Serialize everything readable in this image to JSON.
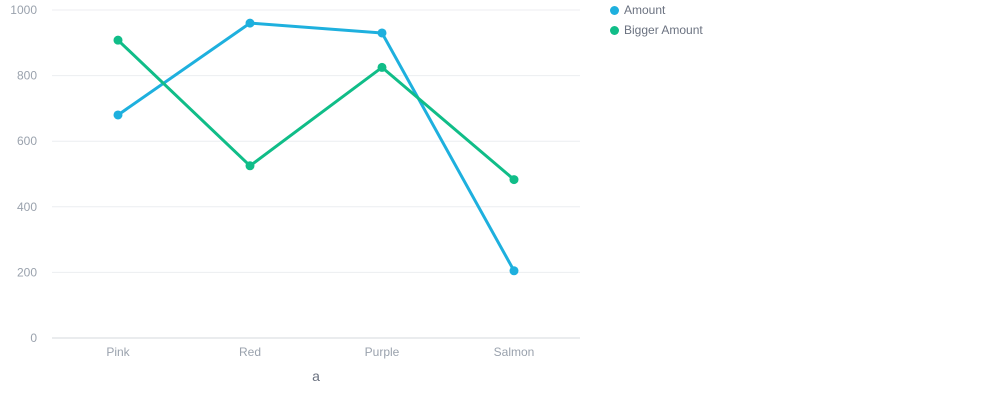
{
  "chart_data": {
    "type": "line",
    "categories": [
      "Pink",
      "Red",
      "Purple",
      "Salmon"
    ],
    "series": [
      {
        "name": "Amount",
        "values": [
          680,
          960,
          930,
          205
        ],
        "color": "#1eb0de"
      },
      {
        "name": "Bigger Amount",
        "values": [
          908,
          525,
          825,
          483
        ],
        "color": "#10bd88"
      }
    ],
    "xlabel": "a",
    "ylabel": "",
    "ylim": [
      0,
      1000
    ],
    "yticks": [
      0,
      200,
      400,
      600,
      800,
      1000
    ],
    "grid": true,
    "legend_position": "top-right"
  }
}
